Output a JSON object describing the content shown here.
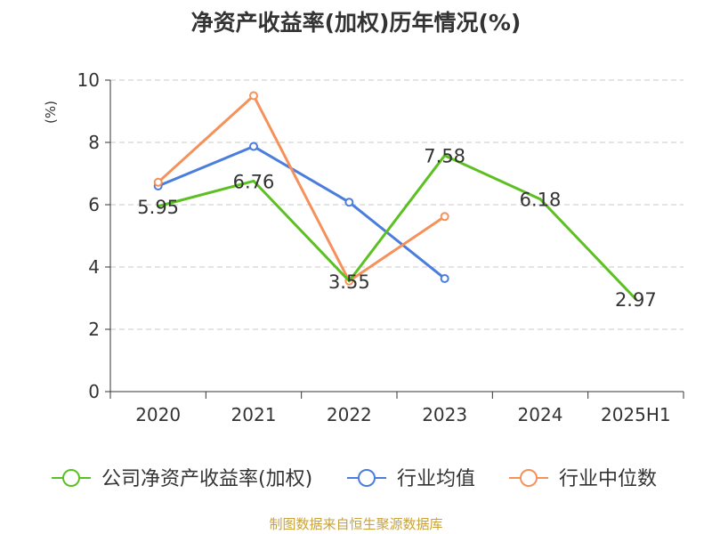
{
  "chart_data": {
    "type": "line",
    "title": "净资产收益率(加权)历年情况(%)",
    "ylabel": "(%)",
    "xlabel": "",
    "categories": [
      "2020",
      "2021",
      "2022",
      "2023",
      "2024",
      "2025H1"
    ],
    "ylim": [
      0,
      10
    ],
    "yticks": [
      0,
      2,
      4,
      6,
      8,
      10
    ],
    "grid": true,
    "legend_position": "bottom",
    "series": [
      {
        "name": "公司净资产收益率(加权)",
        "color": "#5cc022",
        "values": [
          5.95,
          6.76,
          3.55,
          7.58,
          6.18,
          2.97
        ],
        "labels": [
          "5.95",
          "6.76",
          "3.55",
          "7.58",
          "6.18",
          "2.97"
        ],
        "show_markers": false
      },
      {
        "name": "行业均值",
        "color": "#4a7ddc",
        "values": [
          6.6,
          7.87,
          6.08,
          3.63,
          null,
          null
        ],
        "show_markers": true
      },
      {
        "name": "行业中位数",
        "color": "#f5915a",
        "values": [
          6.72,
          9.5,
          3.55,
          5.62,
          null,
          null
        ],
        "show_markers": true
      }
    ]
  },
  "source": "制图数据来自恒生聚源数据库",
  "colors": {
    "axis": "#333333",
    "grid": "#c8c8c8",
    "ylabel": "#e02020",
    "source": "#c8a23c"
  }
}
